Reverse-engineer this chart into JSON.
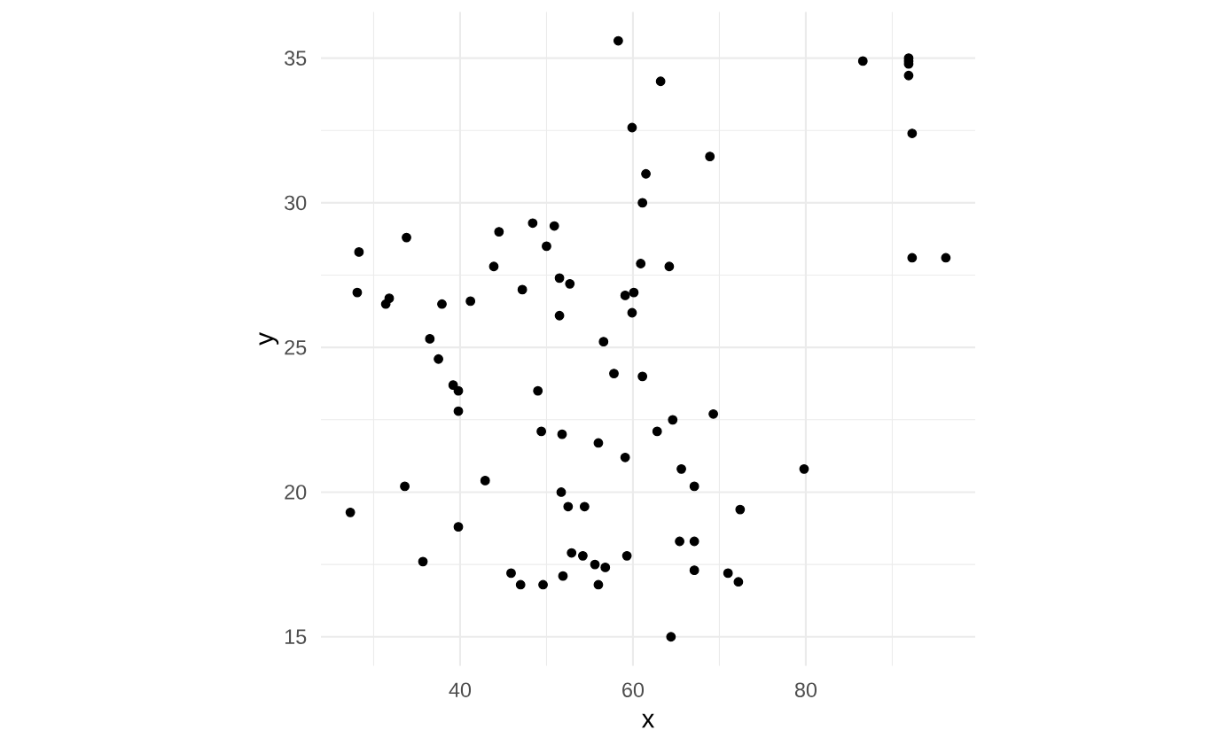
{
  "chart_data": {
    "type": "scatter",
    "xlabel": "x",
    "ylabel": "y",
    "color": "#000000",
    "marker": "circle",
    "grid": true,
    "xlim": [
      23.9,
      99.6
    ],
    "ylim": [
      14.0,
      36.6
    ],
    "xticks": [
      {
        "value": 30,
        "label": null
      },
      40,
      {
        "value": 50,
        "label": null
      },
      60,
      {
        "value": 70,
        "label": null
      },
      80,
      {
        "value": 90,
        "label": null
      }
    ],
    "yticks": [
      15,
      {
        "value": 17.5,
        "label": null
      },
      20,
      {
        "value": 22.5,
        "label": null
      },
      25,
      {
        "value": 27.5,
        "label": null
      },
      30,
      {
        "value": 32.5,
        "label": null
      },
      35
    ],
    "x": [
      58.3,
      59.9,
      61.5,
      61.1,
      28.3,
      33.8,
      44.5,
      48.4,
      50.9,
      50.0,
      60.9,
      43.9,
      28.1,
      47.2,
      51.5,
      52.7,
      31.8,
      31.4,
      37.9,
      41.2,
      59.1,
      60.1,
      59.9,
      51.5,
      36.5,
      56.6,
      86.6,
      91.9,
      91.9,
      91.9,
      91.9,
      63.2,
      92.3,
      68.9,
      64.2,
      92.3,
      96.2,
      37.5,
      39.2,
      39.8,
      39.8,
      49.0,
      57.8,
      61.1,
      49.4,
      51.8,
      56.0,
      59.1,
      42.9,
      33.6,
      27.3,
      51.7,
      52.5,
      54.4,
      39.8,
      35.7,
      52.9,
      54.2,
      55.6,
      56.8,
      59.3,
      45.9,
      47.0,
      49.6,
      51.9,
      56.0,
      69.3,
      64.6,
      62.8,
      65.6,
      67.1,
      79.8,
      72.4,
      65.4,
      67.1,
      67.1,
      71.0,
      72.2,
      64.4
    ],
    "values": [
      35.6,
      32.6,
      31.0,
      30.0,
      28.3,
      28.8,
      29.0,
      29.3,
      29.2,
      28.5,
      27.9,
      27.8,
      26.9,
      27.0,
      27.4,
      27.2,
      26.7,
      26.5,
      26.5,
      26.6,
      26.8,
      26.9,
      26.2,
      26.1,
      25.3,
      25.2,
      34.9,
      35.0,
      34.9,
      34.8,
      34.4,
      34.2,
      32.4,
      31.6,
      27.8,
      28.1,
      28.1,
      24.6,
      23.7,
      23.5,
      22.8,
      23.5,
      24.1,
      24.0,
      22.1,
      22.0,
      21.7,
      21.2,
      20.4,
      20.2,
      19.3,
      20.0,
      19.5,
      19.5,
      18.8,
      17.6,
      17.9,
      17.8,
      17.5,
      17.4,
      17.8,
      17.2,
      16.8,
      16.8,
      17.1,
      16.8,
      22.7,
      22.5,
      22.1,
      20.8,
      20.2,
      20.8,
      19.4,
      18.3,
      18.3,
      17.3,
      17.2,
      16.9,
      15.0
    ]
  }
}
